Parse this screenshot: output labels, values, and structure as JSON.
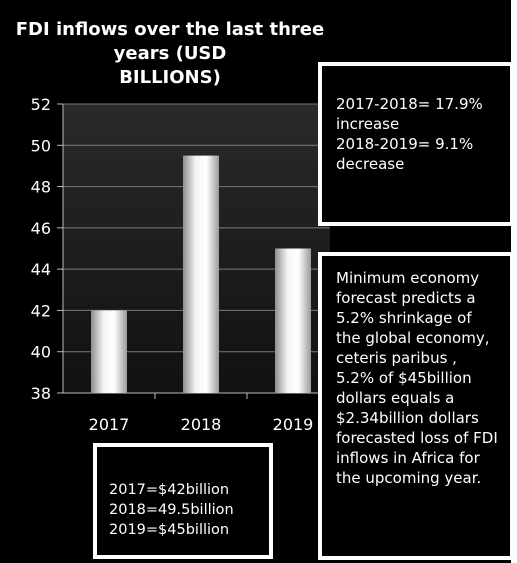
{
  "chart_data": {
    "type": "bar",
    "title": "FDI inflows over the last three years (USD BILLIONS)",
    "title_lines": [
      "FDI inflows over the last three years (USD",
      "BILLIONS)"
    ],
    "categories": [
      "2017",
      "2018",
      "2019"
    ],
    "values": [
      42,
      49.5,
      45
    ],
    "ylim": [
      38,
      52
    ],
    "yticks": [
      "52",
      "50",
      "48",
      "46",
      "44",
      "42",
      "40",
      "38"
    ],
    "ytick_values": [
      52,
      50,
      48,
      46,
      44,
      42,
      40,
      38
    ],
    "grid": true,
    "xlabel": "",
    "ylabel": ""
  },
  "annotations": {
    "growth": [
      "2017-2018= 17.9% increase",
      "2018-2019= 9.1% decrease"
    ],
    "forecast": [
      "Minimum economy forecast predicts a 5.2% shrinkage of the global economy, ceteris paribus , 5.2% of $45billion dollars equals a $2.34billion dollars forecasted loss of FDI inflows in Africa for the upcoming year."
    ],
    "values": [
      "2017=$42billion",
      "2018=49.5billion",
      "2019=$45billion"
    ]
  },
  "colors": {
    "background": "#000000",
    "text": "#ffffff",
    "bar": "#e6e6e6",
    "grid": "#7a7a7a",
    "plot_area": "#1a1a1a"
  }
}
